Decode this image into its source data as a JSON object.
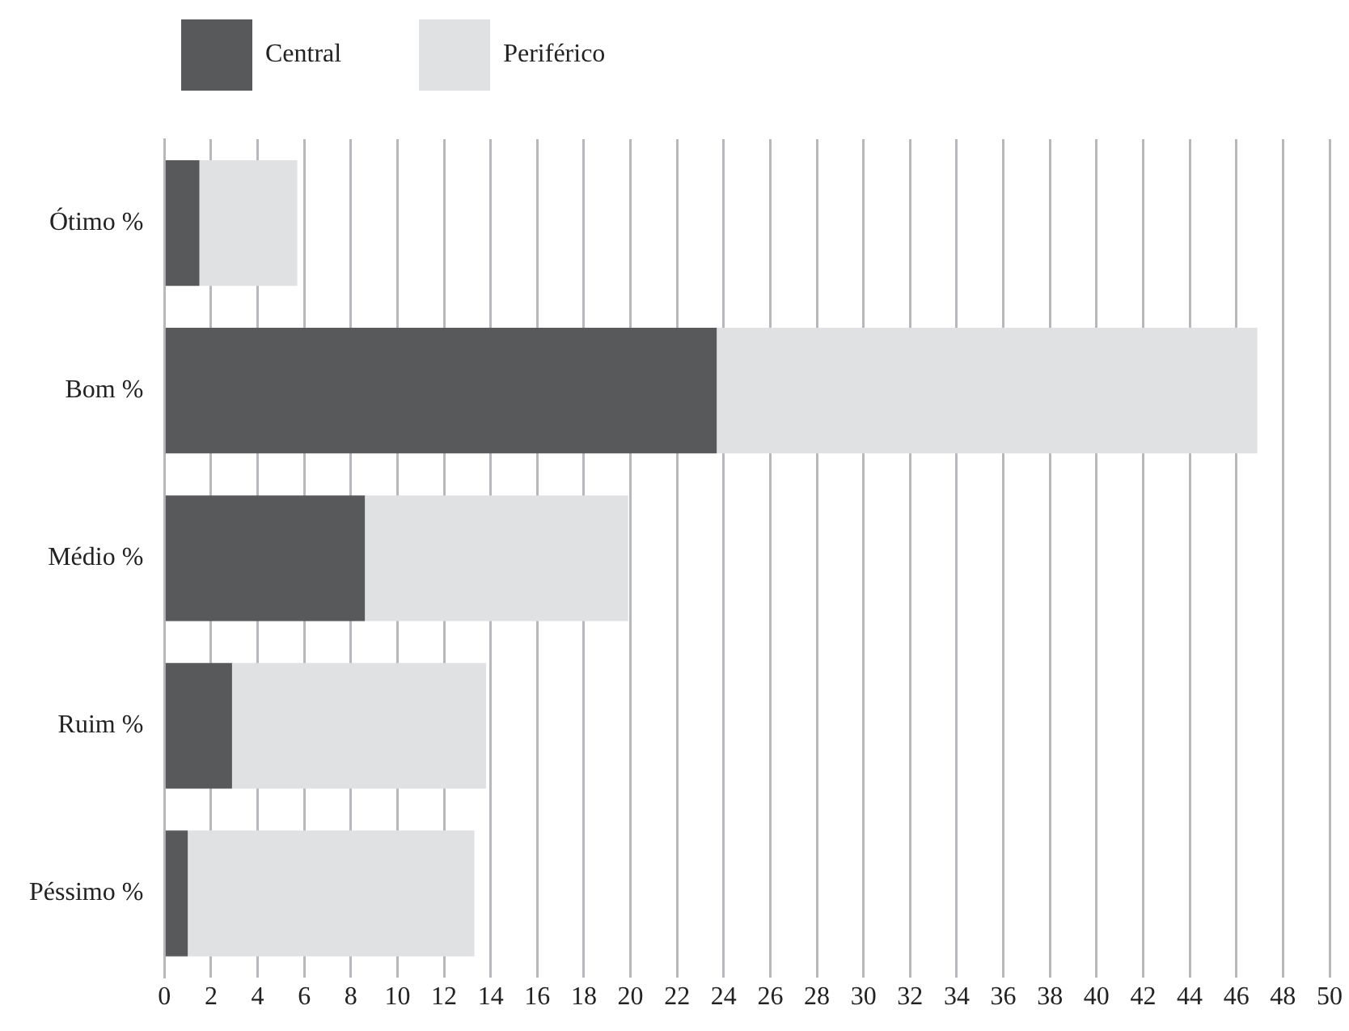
{
  "chart_data": {
    "type": "bar",
    "orientation": "horizontal",
    "stacked": true,
    "categories": [
      "Ótimo %",
      "Bom %",
      "Médio %",
      "Ruim %",
      "Péssimo %"
    ],
    "series": [
      {
        "name": "Central",
        "color": "#58595b",
        "values": [
          1.5,
          23.7,
          8.6,
          2.9,
          1.0
        ]
      },
      {
        "name": "Periférico",
        "color": "#e0e1e3",
        "values": [
          4.2,
          23.2,
          11.3,
          10.9,
          12.3
        ]
      }
    ],
    "xlim": [
      0,
      50
    ],
    "xticks": [
      0,
      2,
      4,
      6,
      8,
      10,
      12,
      14,
      16,
      18,
      20,
      22,
      24,
      26,
      28,
      30,
      32,
      34,
      36,
      38,
      40,
      42,
      44,
      46,
      48,
      50
    ],
    "grid": "x",
    "legend": "top left"
  }
}
